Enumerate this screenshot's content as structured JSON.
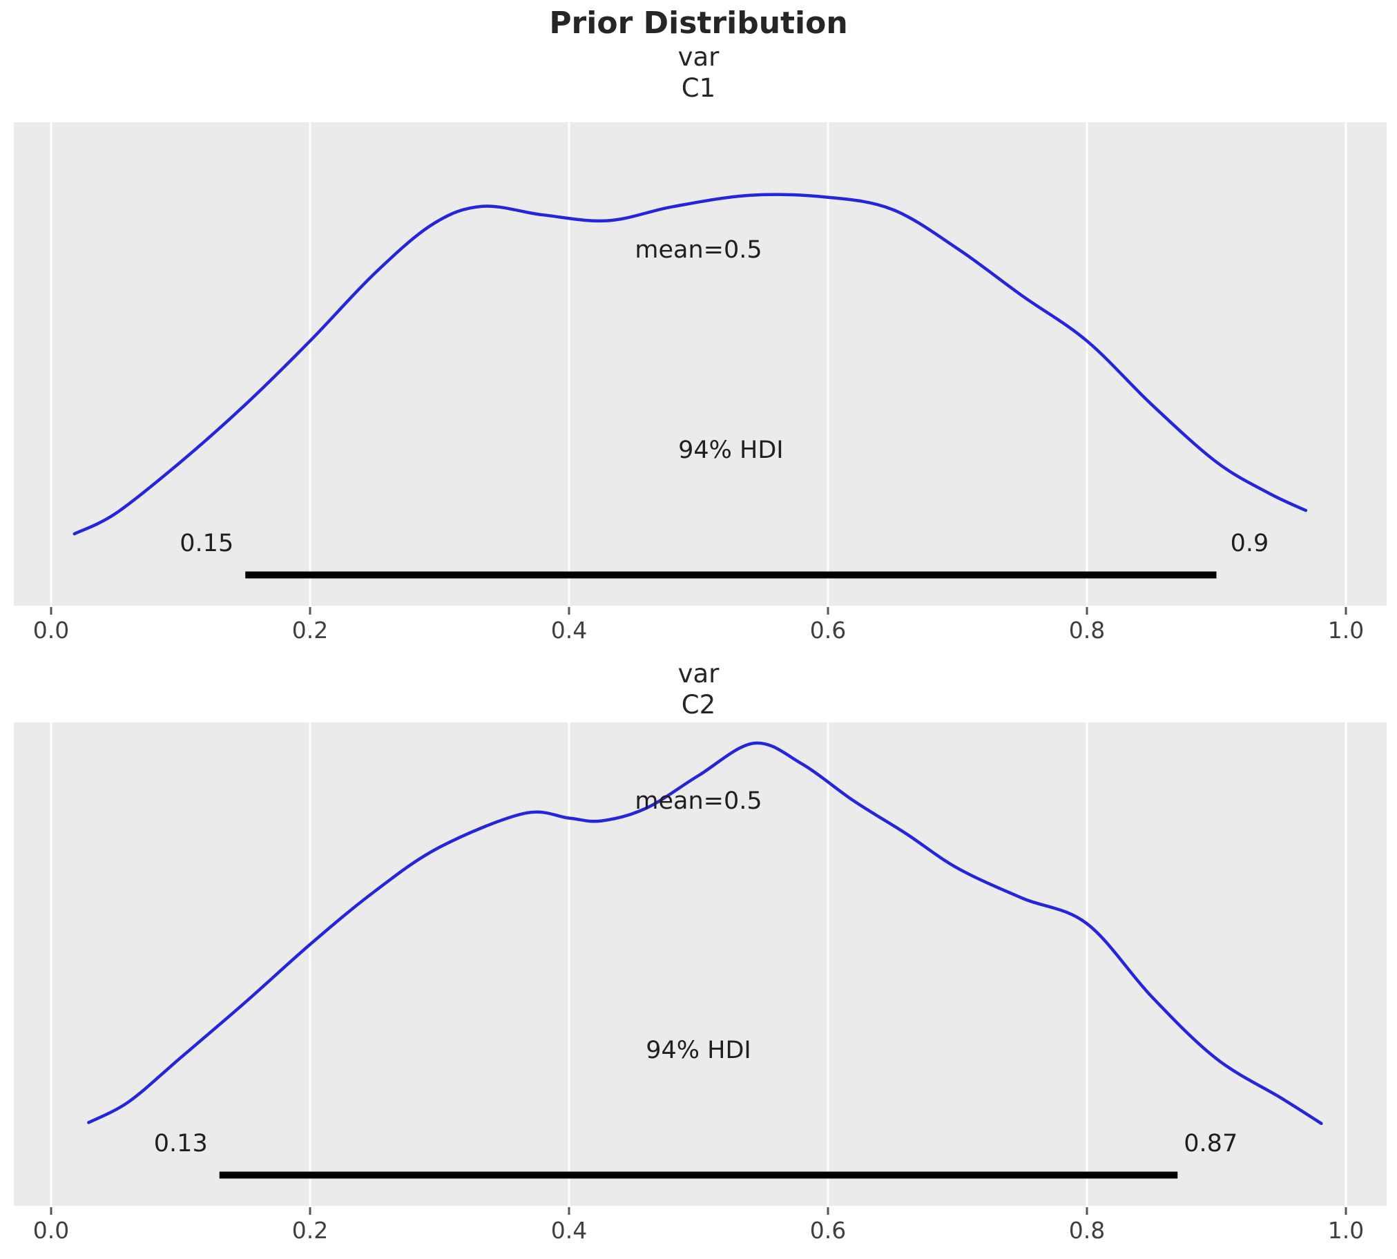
{
  "title": "Prior Distribution",
  "colors": {
    "figure_bg": "#ffffff",
    "panel_bg": "#ebebeb",
    "gridline": "#ffffff",
    "curve": "#2525dc",
    "hdi_line": "#000000",
    "title_text": "#262626",
    "annotation_text": "#1f1f1f",
    "tick_text": "#3f3f3f"
  },
  "x_axis": {
    "values": [
      0.0,
      0.2,
      0.4,
      0.6,
      0.8,
      1.0
    ],
    "labels": [
      "0.0",
      "0.2",
      "0.4",
      "0.6",
      "0.8",
      "1.0"
    ]
  },
  "chart_data": [
    {
      "type": "line",
      "subtype": "kde-density",
      "var_label": "var",
      "coord_label": "C1",
      "mean": 0.5,
      "mean_label": "mean=0.5",
      "mean_y_frac": 0.264,
      "hdi_prob_label": "94% HDI",
      "hdi_lower": 0.15,
      "hdi_upper": 0.9,
      "hdi_lower_label": "0.15",
      "hdi_upper_label": "0.9",
      "xlim": [
        -0.029,
        1.031
      ],
      "grid": "vertical-only",
      "legend": "none",
      "peak_height_frac": 0.849,
      "points": [
        [
          0.018,
          0.175
        ],
        [
          0.05,
          0.225
        ],
        [
          0.1,
          0.35
        ],
        [
          0.15,
          0.49
        ],
        [
          0.2,
          0.645
        ],
        [
          0.25,
          0.81
        ],
        [
          0.295,
          0.93
        ],
        [
          0.333,
          0.973
        ],
        [
          0.38,
          0.952
        ],
        [
          0.43,
          0.938
        ],
        [
          0.48,
          0.972
        ],
        [
          0.54,
          1.0
        ],
        [
          0.6,
          0.995
        ],
        [
          0.65,
          0.965
        ],
        [
          0.7,
          0.87
        ],
        [
          0.75,
          0.755
        ],
        [
          0.8,
          0.645
        ],
        [
          0.85,
          0.49
        ],
        [
          0.9,
          0.35
        ],
        [
          0.94,
          0.275
        ],
        [
          0.969,
          0.232
        ]
      ]
    },
    {
      "type": "line",
      "subtype": "kde-density",
      "var_label": "var",
      "coord_label": "C2",
      "mean": 0.5,
      "mean_label": "mean=0.5",
      "mean_y_frac": 0.163,
      "hdi_prob_label": "94% HDI",
      "hdi_lower": 0.13,
      "hdi_upper": 0.87,
      "hdi_lower_label": "0.13",
      "hdi_upper_label": "0.87",
      "xlim": [
        -0.029,
        1.031
      ],
      "grid": "vertical-only",
      "legend": "none",
      "peak_height_frac": 0.957,
      "points": [
        [
          0.029,
          0.18
        ],
        [
          0.06,
          0.225
        ],
        [
          0.1,
          0.32
        ],
        [
          0.15,
          0.44
        ],
        [
          0.2,
          0.565
        ],
        [
          0.25,
          0.68
        ],
        [
          0.3,
          0.775
        ],
        [
          0.365,
          0.848
        ],
        [
          0.4,
          0.838
        ],
        [
          0.425,
          0.832
        ],
        [
          0.46,
          0.86
        ],
        [
          0.5,
          0.93
        ],
        [
          0.543,
          1.0
        ],
        [
          0.58,
          0.955
        ],
        [
          0.62,
          0.875
        ],
        [
          0.66,
          0.805
        ],
        [
          0.7,
          0.73
        ],
        [
          0.75,
          0.665
        ],
        [
          0.8,
          0.61
        ],
        [
          0.85,
          0.452
        ],
        [
          0.9,
          0.318
        ],
        [
          0.95,
          0.233
        ],
        [
          0.981,
          0.178
        ]
      ]
    }
  ]
}
